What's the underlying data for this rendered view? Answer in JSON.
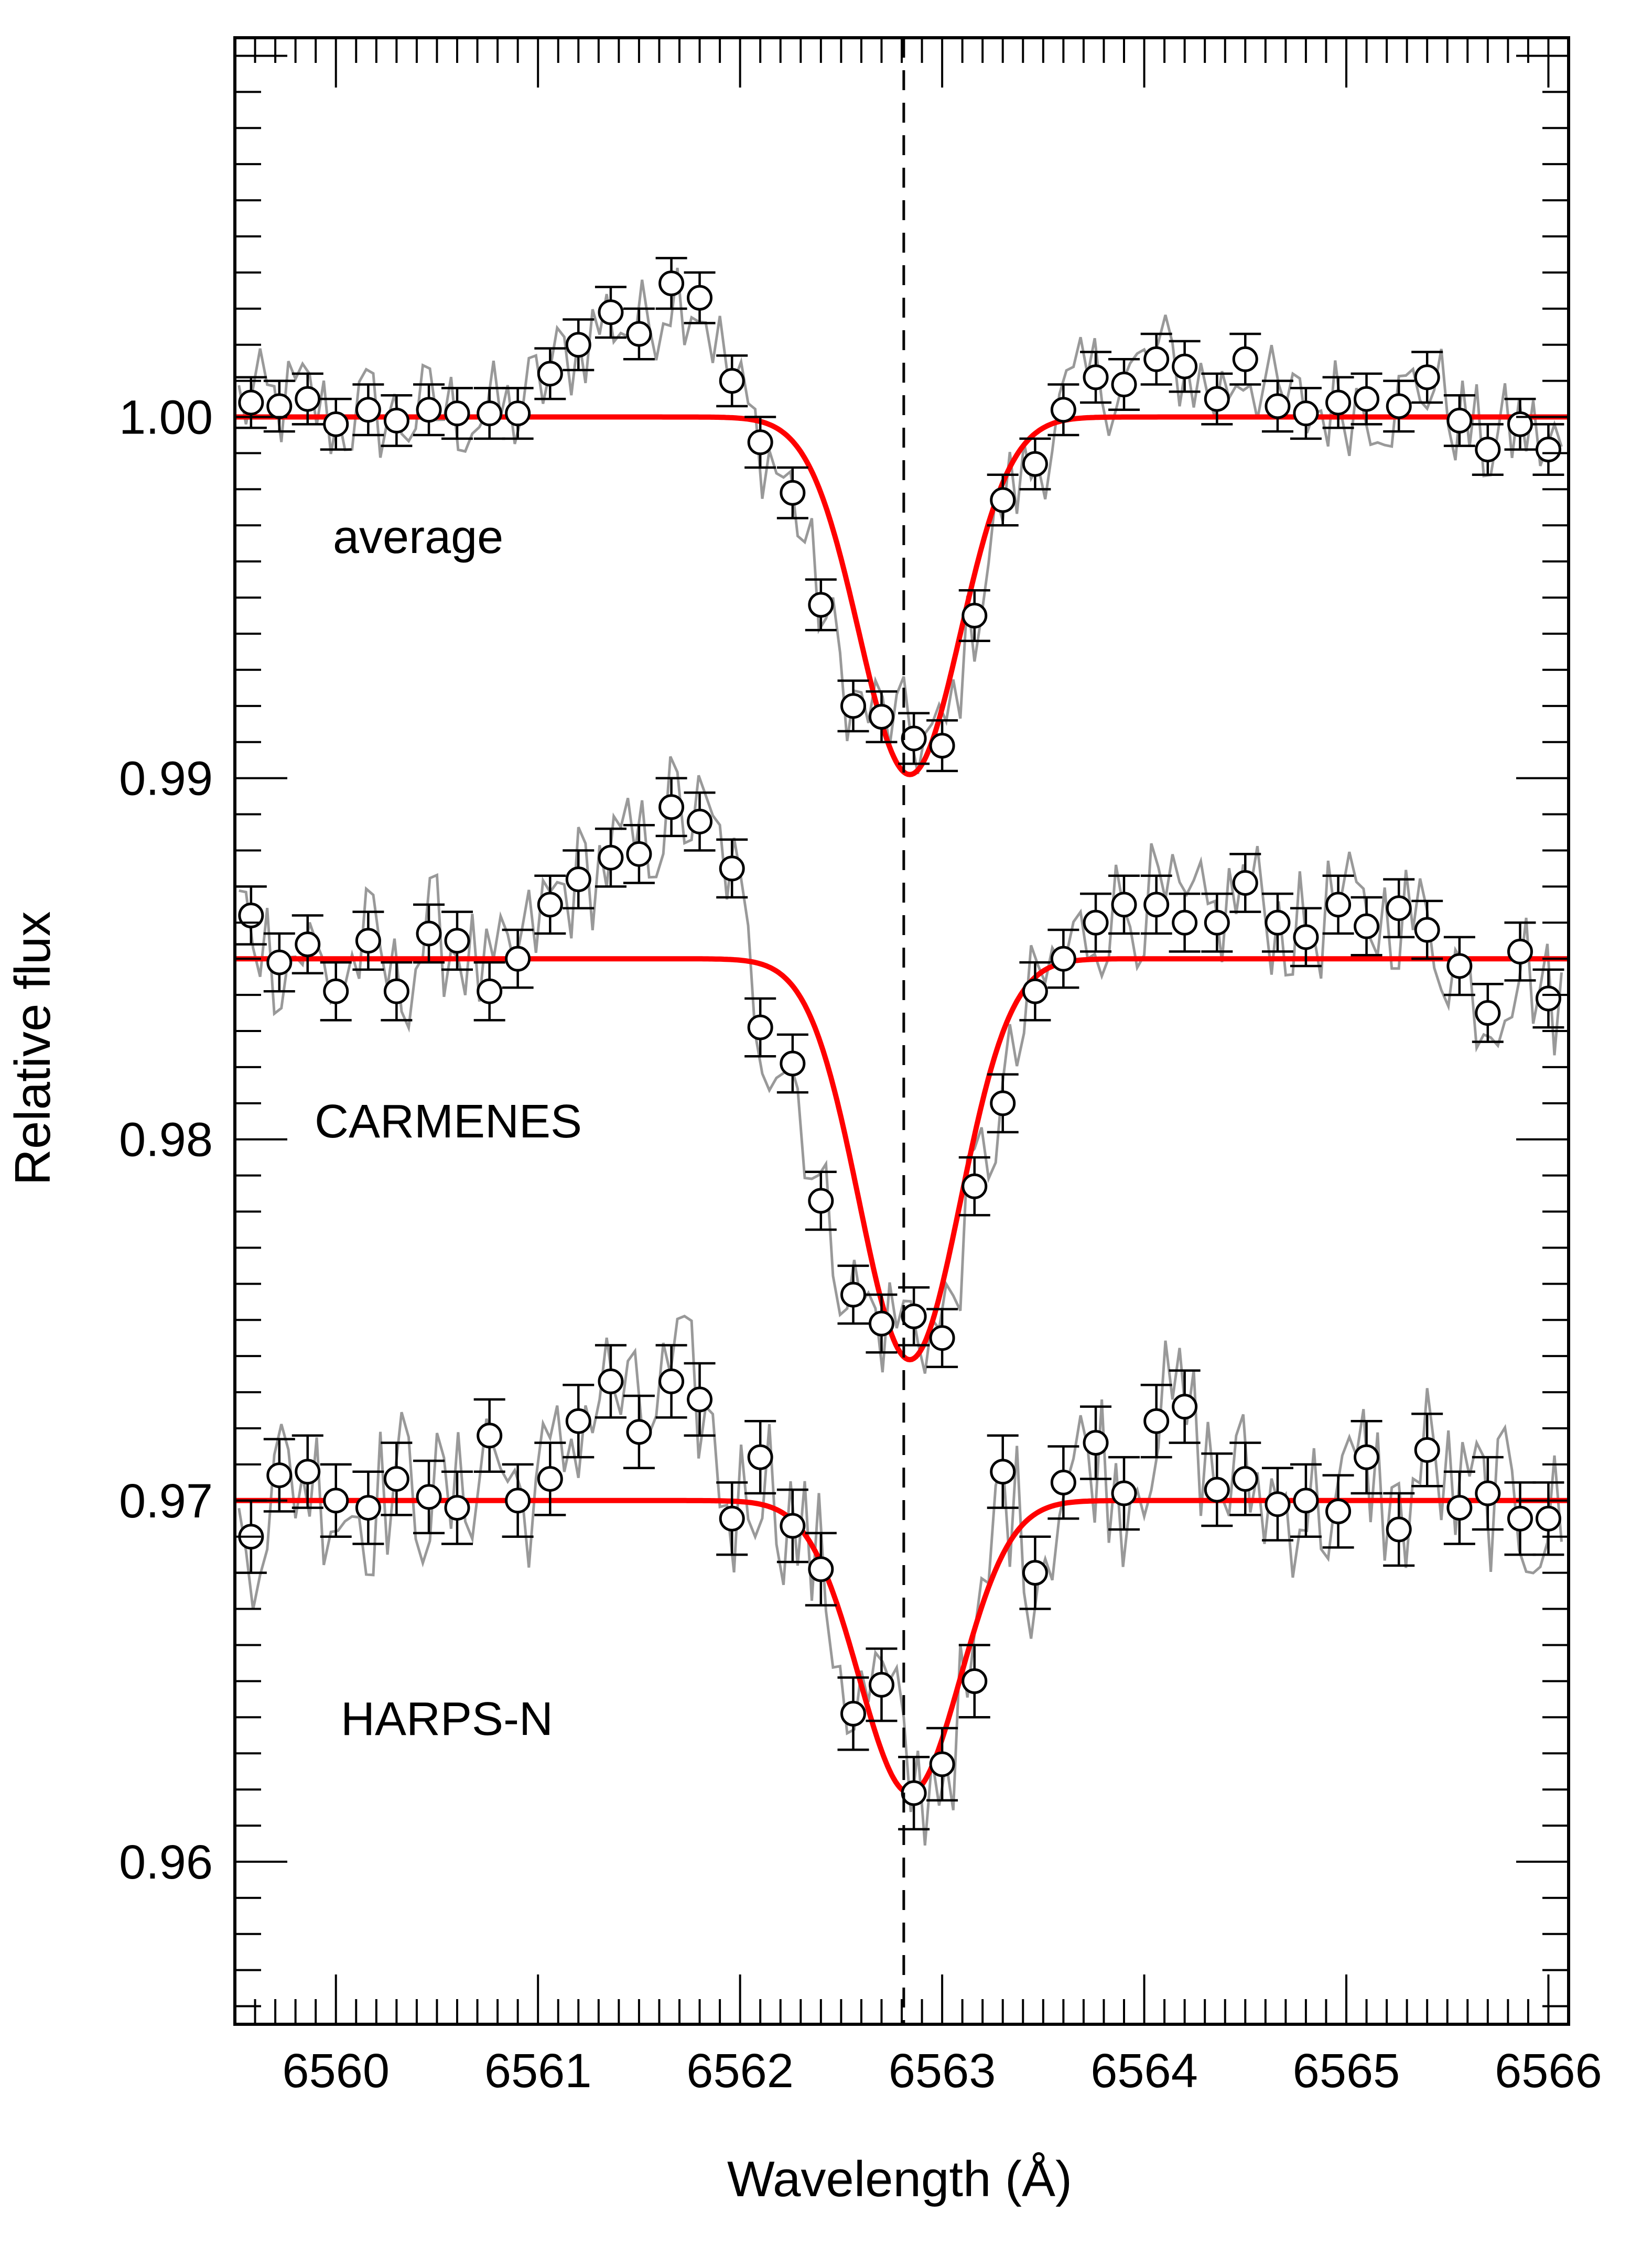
{
  "chart_data": {
    "type": "line",
    "title": "",
    "xlabel": "Wavelength (Å)",
    "ylabel": "Relative flux",
    "xlim": [
      6559.5,
      6566.1
    ],
    "ylim": [
      0.9555,
      1.0105
    ],
    "grid": false,
    "legend": "none",
    "x_ticks": [
      6560,
      6561,
      6562,
      6563,
      6564,
      6565,
      6566
    ],
    "x_tick_labels": [
      "6560",
      "6561",
      "6562",
      "6563",
      "6564",
      "6565",
      "6566"
    ],
    "y_ticks": [
      0.96,
      0.97,
      0.98,
      0.99,
      1.0
    ],
    "y_tick_labels": [
      "0.96",
      "0.97",
      "0.98",
      "0.99",
      "1.00"
    ],
    "reference_line": {
      "x": 6562.81,
      "style": "dashed"
    },
    "colors": {
      "binned": "#000000",
      "raw": "#999999",
      "fit": "#ff0000"
    },
    "bin_x": [
      6559.58,
      6559.72,
      6559.86,
      6560.0,
      6560.16,
      6560.3,
      6560.46,
      6560.6,
      6560.76,
      6560.9,
      6561.06,
      6561.2,
      6561.36,
      6561.5,
      6561.66,
      6561.8,
      6561.96,
      6562.1,
      6562.26,
      6562.4,
      6562.56,
      6562.7,
      6562.86,
      6563.0,
      6563.16,
      6563.3,
      6563.46,
      6563.6,
      6563.76,
      6563.9,
      6564.06,
      6564.2,
      6564.36,
      6564.5,
      6564.66,
      6564.8,
      6564.96,
      6565.1,
      6565.26,
      6565.4,
      6565.56,
      6565.7,
      6565.86,
      6566.0
    ],
    "series": [
      {
        "label": "average",
        "values": [
          1.0004,
          1.0003,
          1.0005,
          0.9998,
          1.0002,
          0.9999,
          1.0002,
          1.0001,
          1.0001,
          1.0001,
          1.0012,
          1.002,
          1.0029,
          1.0023,
          1.0037,
          1.0033,
          1.001,
          0.9993,
          0.9979,
          0.9948,
          0.992,
          0.9917,
          0.9911,
          0.9909,
          0.9945,
          0.9977,
          0.9987,
          1.0002,
          1.0011,
          1.0009,
          1.0016,
          1.0014,
          1.0005,
          1.0016,
          1.0003,
          1.0001,
          1.0004,
          1.0005,
          1.0003,
          1.0011,
          0.9999,
          0.9991,
          0.9998,
          0.9991
        ],
        "error": 0.0007,
        "fit": {
          "continuum": 1.0,
          "depth": 0.0099,
          "center": 6562.84,
          "sigma": 0.25
        }
      },
      {
        "label": "CARMENES",
        "values": [
          0.9862,
          0.9849,
          0.9854,
          0.9841,
          0.9855,
          0.9841,
          0.9857,
          0.9855,
          0.9841,
          0.985,
          0.9865,
          0.9872,
          0.9878,
          0.9879,
          0.9892,
          0.9888,
          0.9875,
          0.9831,
          0.9821,
          0.9783,
          0.9757,
          0.9749,
          0.9751,
          0.9745,
          0.9787,
          0.981,
          0.9841,
          0.985,
          0.986,
          0.9865,
          0.9865,
          0.986,
          0.986,
          0.9871,
          0.986,
          0.9856,
          0.9865,
          0.9859,
          0.9864,
          0.9858,
          0.9848,
          0.9835,
          0.9852,
          0.9839
        ],
        "error": 0.0008,
        "fit": {
          "continuum": 0.985,
          "depth": 0.0111,
          "center": 6562.84,
          "sigma": 0.25
        }
      },
      {
        "label": "HARPS-N",
        "values": [
          0.969,
          0.9707,
          0.9708,
          0.97,
          0.9698,
          0.9706,
          0.9701,
          0.9698,
          0.9718,
          0.97,
          0.9706,
          0.9722,
          0.9733,
          0.9719,
          0.9733,
          0.9728,
          0.9695,
          0.9712,
          0.9693,
          0.9681,
          0.9641,
          0.9649,
          0.9619,
          0.9627,
          0.965,
          0.9708,
          0.968,
          0.9705,
          0.9716,
          0.9702,
          0.9722,
          0.9726,
          0.9703,
          0.9706,
          0.9699,
          0.97,
          0.9697,
          0.9712,
          0.9692,
          0.9714,
          0.9698,
          0.9702,
          0.9695,
          0.9695
        ],
        "error": 0.001,
        "fit": {
          "continuum": 0.97,
          "depth": 0.0081,
          "center": 6562.84,
          "sigma": 0.25
        }
      }
    ]
  }
}
